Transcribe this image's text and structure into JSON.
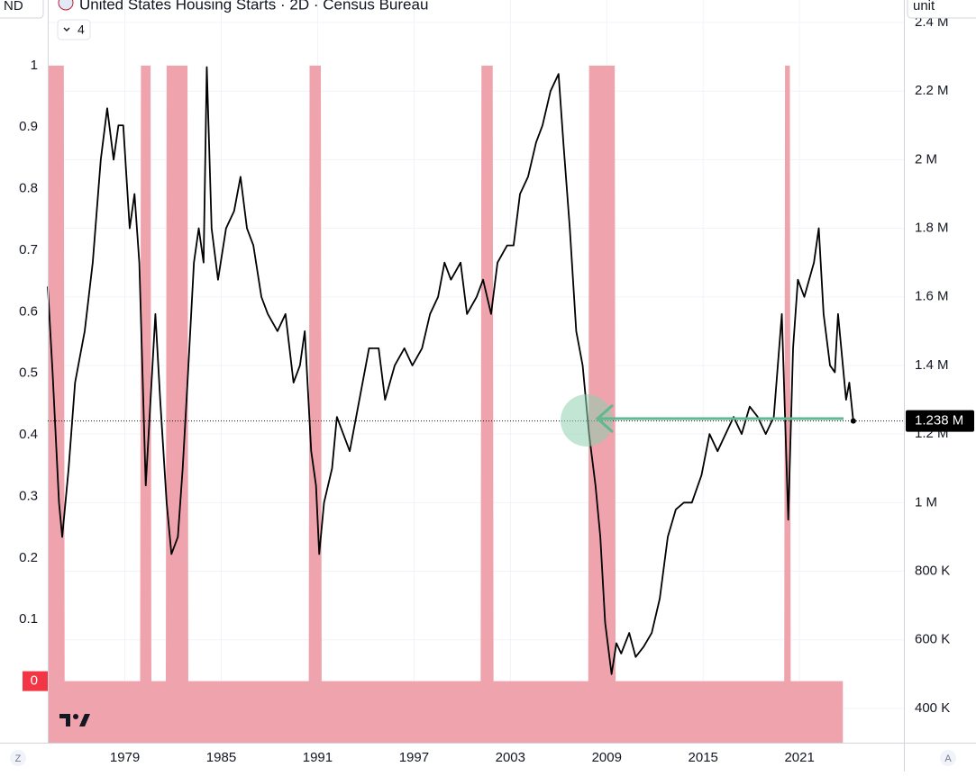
{
  "chart_data": {
    "type": "line",
    "title": "United States Housing Starts · 2D · Census Bureau",
    "xlim": [
      1974.2,
      2027.5
    ],
    "xticks": [
      1979,
      1985,
      1991,
      1997,
      2003,
      2009,
      2015,
      2021
    ],
    "ylim": [
      -0.1,
      1.07
    ],
    "yticks": [
      0,
      0.1,
      0.2,
      0.3,
      0.4,
      0.5,
      0.6,
      0.7,
      0.8,
      0.9,
      1
    ],
    "y2lim": [
      300000,
      2400000
    ],
    "y2ticks": [
      {
        "value": 400000,
        "label": "400 K"
      },
      {
        "value": 600000,
        "label": "600 K"
      },
      {
        "value": 800000,
        "label": "800 K"
      },
      {
        "value": 1000000,
        "label": "1 M"
      },
      {
        "value": 1200000,
        "label": "1.2 M"
      },
      {
        "value": 1400000,
        "label": "1.4 M"
      },
      {
        "value": 1600000,
        "label": "1.6 M"
      },
      {
        "value": 1800000,
        "label": "1.8 M"
      },
      {
        "value": 2000000,
        "label": "2 M"
      },
      {
        "value": 2200000,
        "label": "2.2 M"
      },
      {
        "value": 2400000,
        "label": "2.4 M"
      }
    ],
    "grid": true,
    "last_value": {
      "value": 1238000,
      "label": "1.238 M"
    },
    "series": [
      {
        "type": "area",
        "axis": "y",
        "color": "#eea3ad",
        "x": [
          1974.2,
          1975.2,
          1975.25,
          1979.95,
          1980.0,
          1980.6,
          1980.65,
          1981.55,
          1981.6,
          1982.9,
          1982.95,
          1990.45,
          1990.5,
          1991.2,
          1991.25,
          2001.15,
          2001.2,
          2001.9,
          2001.95,
          2007.85,
          2007.9,
          2009.5,
          2009.55,
          2020.05,
          2020.1,
          2020.4,
          2020.45,
          2023.7
        ],
        "values": [
          1,
          1,
          0,
          0,
          1,
          1,
          0,
          0,
          1,
          1,
          0,
          0,
          1,
          1,
          0,
          0,
          1,
          1,
          0,
          0,
          1,
          1,
          0,
          0,
          1,
          1,
          0,
          0
        ]
      },
      {
        "type": "line",
        "axis": "y2",
        "color": "#000000",
        "x": [
          1974.2,
          1974.5,
          1974.9,
          1975.1,
          1975.5,
          1975.9,
          1976.5,
          1977.0,
          1977.5,
          1977.9,
          1978.3,
          1978.6,
          1978.9,
          1979.3,
          1979.6,
          1979.9,
          1980.3,
          1980.6,
          1980.9,
          1981.2,
          1981.6,
          1981.9,
          1982.3,
          1982.6,
          1982.9,
          1983.3,
          1983.6,
          1983.9,
          1984.1,
          1984.4,
          1984.8,
          1985.3,
          1985.8,
          1986.2,
          1986.6,
          1987.0,
          1987.5,
          1987.9,
          1988.5,
          1989.0,
          1989.5,
          1989.9,
          1990.2,
          1990.6,
          1990.9,
          1991.1,
          1991.4,
          1991.9,
          1992.2,
          1992.6,
          1993.0,
          1993.6,
          1994.2,
          1994.8,
          1995.2,
          1995.8,
          1996.4,
          1996.9,
          1997.5,
          1998.0,
          1998.5,
          1998.9,
          1999.3,
          1999.9,
          2000.3,
          2000.9,
          2001.3,
          2001.8,
          2002.2,
          2002.8,
          2003.2,
          2003.6,
          2004.1,
          2004.6,
          2005.0,
          2005.5,
          2006.0,
          2006.3,
          2006.7,
          2007.1,
          2007.5,
          2007.9,
          2008.3,
          2008.6,
          2008.9,
          2009.3,
          2009.6,
          2009.9,
          2010.4,
          2010.8,
          2011.3,
          2011.8,
          2012.3,
          2012.8,
          2013.3,
          2013.8,
          2014.3,
          2014.9,
          2015.4,
          2015.9,
          2016.4,
          2016.9,
          2017.4,
          2017.9,
          2018.4,
          2018.9,
          2019.4,
          2019.9,
          2020.3,
          2020.6,
          2020.9,
          2021.3,
          2021.9,
          2022.2,
          2022.5,
          2022.9,
          2023.2,
          2023.4,
          2023.7,
          2023.9,
          2024.1,
          2024.35
        ],
        "values": [
          1630000,
          1380000,
          1000000,
          900000,
          1100000,
          1350000,
          1500000,
          1700000,
          2000000,
          2150000,
          2000000,
          2100000,
          2100000,
          1800000,
          1900000,
          1700000,
          1050000,
          1300000,
          1550000,
          1300000,
          1000000,
          850000,
          900000,
          1100000,
          1350000,
          1700000,
          1800000,
          1700000,
          2270000,
          1800000,
          1650000,
          1800000,
          1850000,
          1950000,
          1800000,
          1750000,
          1600000,
          1550000,
          1500000,
          1550000,
          1350000,
          1400000,
          1500000,
          1150000,
          1050000,
          850000,
          1000000,
          1100000,
          1250000,
          1200000,
          1150000,
          1300000,
          1450000,
          1450000,
          1300000,
          1400000,
          1450000,
          1400000,
          1450000,
          1550000,
          1600000,
          1700000,
          1650000,
          1700000,
          1550000,
          1600000,
          1650000,
          1550000,
          1700000,
          1750000,
          1750000,
          1900000,
          1950000,
          2050000,
          2100000,
          2200000,
          2250000,
          2050000,
          1800000,
          1500000,
          1400000,
          1200000,
          1050000,
          900000,
          650000,
          500000,
          590000,
          560000,
          620000,
          550000,
          580000,
          620000,
          720000,
          900000,
          980000,
          1000000,
          1000000,
          1080000,
          1200000,
          1150000,
          1200000,
          1250000,
          1200000,
          1280000,
          1250000,
          1200000,
          1250000,
          1550000,
          950000,
          1450000,
          1650000,
          1600000,
          1700000,
          1800000,
          1550000,
          1400000,
          1380000,
          1550000,
          1400000,
          1300000,
          1350000,
          1238000
        ]
      }
    ]
  },
  "toolbar": {
    "symbol_box": "ND",
    "unit_box": "unit",
    "collapse_count": 4,
    "left_button": "Z",
    "right_button": "A"
  }
}
